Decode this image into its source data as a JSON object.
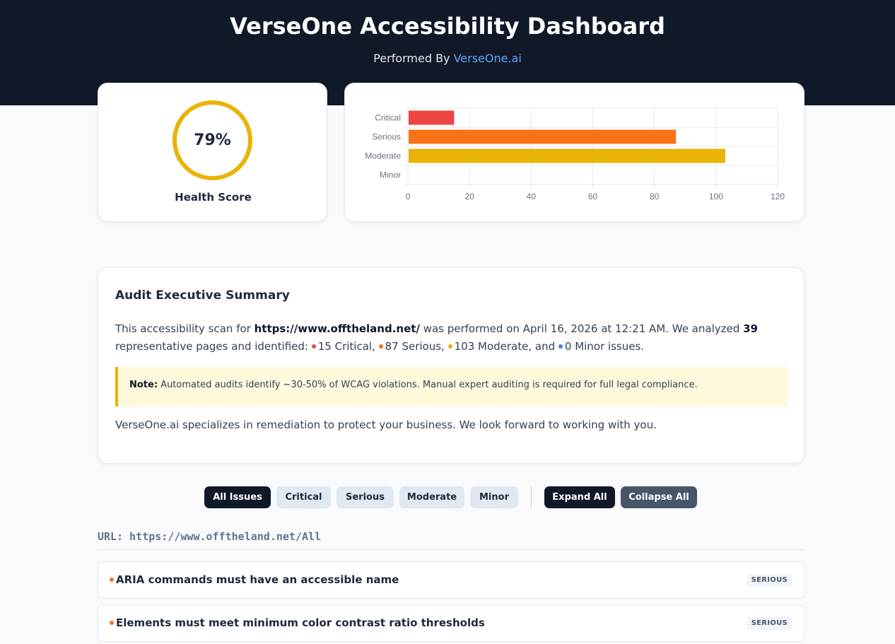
{
  "header": {
    "title": "VerseOne Accessibility Dashboard",
    "performed_by_prefix": "Performed By ",
    "performed_by_link": "VerseOne.ai"
  },
  "health": {
    "score": "79%",
    "score_fraction": 0.79,
    "label": "Health Score",
    "ring_color": "#eab308"
  },
  "chart_data": {
    "type": "bar",
    "orientation": "horizontal",
    "categories": [
      "Critical",
      "Serious",
      "Moderate",
      "Minor"
    ],
    "values": [
      15,
      87,
      103,
      0
    ],
    "colors": [
      "#ef4444",
      "#f97316",
      "#eab308",
      "#3b82f6"
    ],
    "xlim": [
      0,
      120
    ],
    "xticks": [
      0,
      20,
      40,
      60,
      80,
      100,
      120
    ],
    "grid": true,
    "legend": "none"
  },
  "summary": {
    "title": "Audit Executive Summary",
    "p1_a": "This accessibility scan for ",
    "p1_url": "https://www.offtheland.net/",
    "p1_b": " was performed on April 16, 2026 at 12:21 AM. We analyzed ",
    "p1_pages": "39",
    "p1_c": " representative pages and identified: ",
    "critical": "15 Critical,",
    "serious": "87 Serious,",
    "moderate": "103 Moderate, and",
    "minor": "0 Minor issues.",
    "note_label": "Note:",
    "note_text": " Automated audits identify ~30-50% of WCAG violations. Manual expert auditing is required for full legal compliance.",
    "closing": "VerseOne.ai specializes in remediation to protect your business. We look forward to working with you."
  },
  "filters": {
    "all": "All Issues",
    "critical": "Critical",
    "serious": "Serious",
    "moderate": "Moderate",
    "minor": "Minor",
    "expand": "Expand All",
    "collapse": "Collapse All"
  },
  "url_label": "URL: https://www.offtheland.net/All",
  "issues": [
    {
      "title": "ARIA commands must have an accessible name",
      "severity": "SERIOUS"
    },
    {
      "title": "Elements must meet minimum color contrast ratio thresholds",
      "severity": "SERIOUS"
    }
  ],
  "colors": {
    "critical": "#ef4444",
    "serious": "#f97316",
    "moderate": "#eab308",
    "minor": "#3b82f6",
    "header_bg": "#111827"
  }
}
